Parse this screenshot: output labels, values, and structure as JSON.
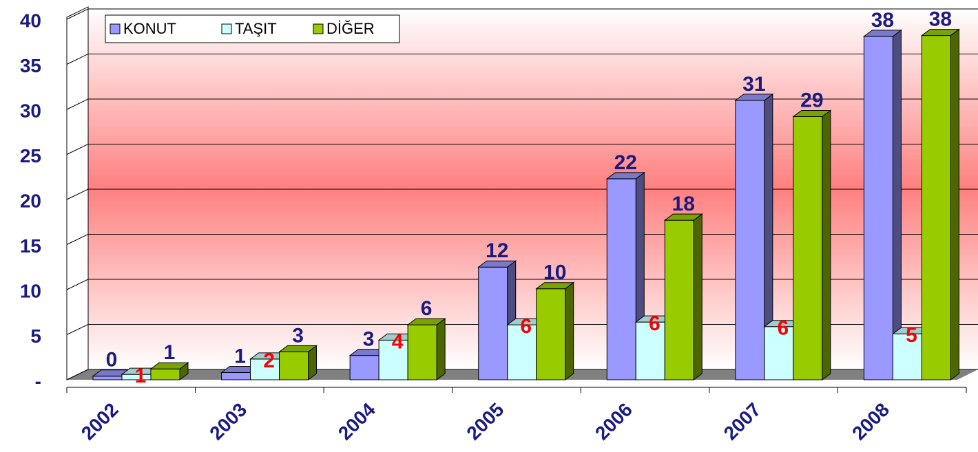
{
  "chart_data": {
    "type": "bar3d",
    "categories": [
      "2002",
      "2003",
      "2004",
      "2005",
      "2006",
      "2007",
      "2008"
    ],
    "series": [
      {
        "name": "KONUT",
        "color": "#9999ff",
        "values": [
          0.4,
          0.8,
          2.7,
          12.5,
          22.3,
          31,
          38.1
        ],
        "value_labels": [
          "0",
          "1",
          "3",
          "12",
          "22",
          "31",
          "38"
        ]
      },
      {
        "name": "TAŞIT",
        "color": "#ccffff",
        "values": [
          0.6,
          2.3,
          4.4,
          6.1,
          6.4,
          5.9,
          5.1
        ],
        "value_labels": [
          "1",
          "2",
          "4",
          "6",
          "6",
          "6",
          "5"
        ]
      },
      {
        "name": "DİĞER",
        "color": "#99cc00",
        "values": [
          1.2,
          3.1,
          6.1,
          10.1,
          17.7,
          29.2,
          38.2
        ],
        "value_labels": [
          "1",
          "3",
          "6",
          "10",
          "18",
          "29",
          "38"
        ]
      }
    ],
    "ylim": [
      0,
      40
    ],
    "yticks": [
      {
        "value": 0,
        "label": "-"
      },
      5,
      10,
      15,
      20,
      25,
      30,
      35,
      40
    ],
    "grid": true,
    "legend": "top-left"
  }
}
